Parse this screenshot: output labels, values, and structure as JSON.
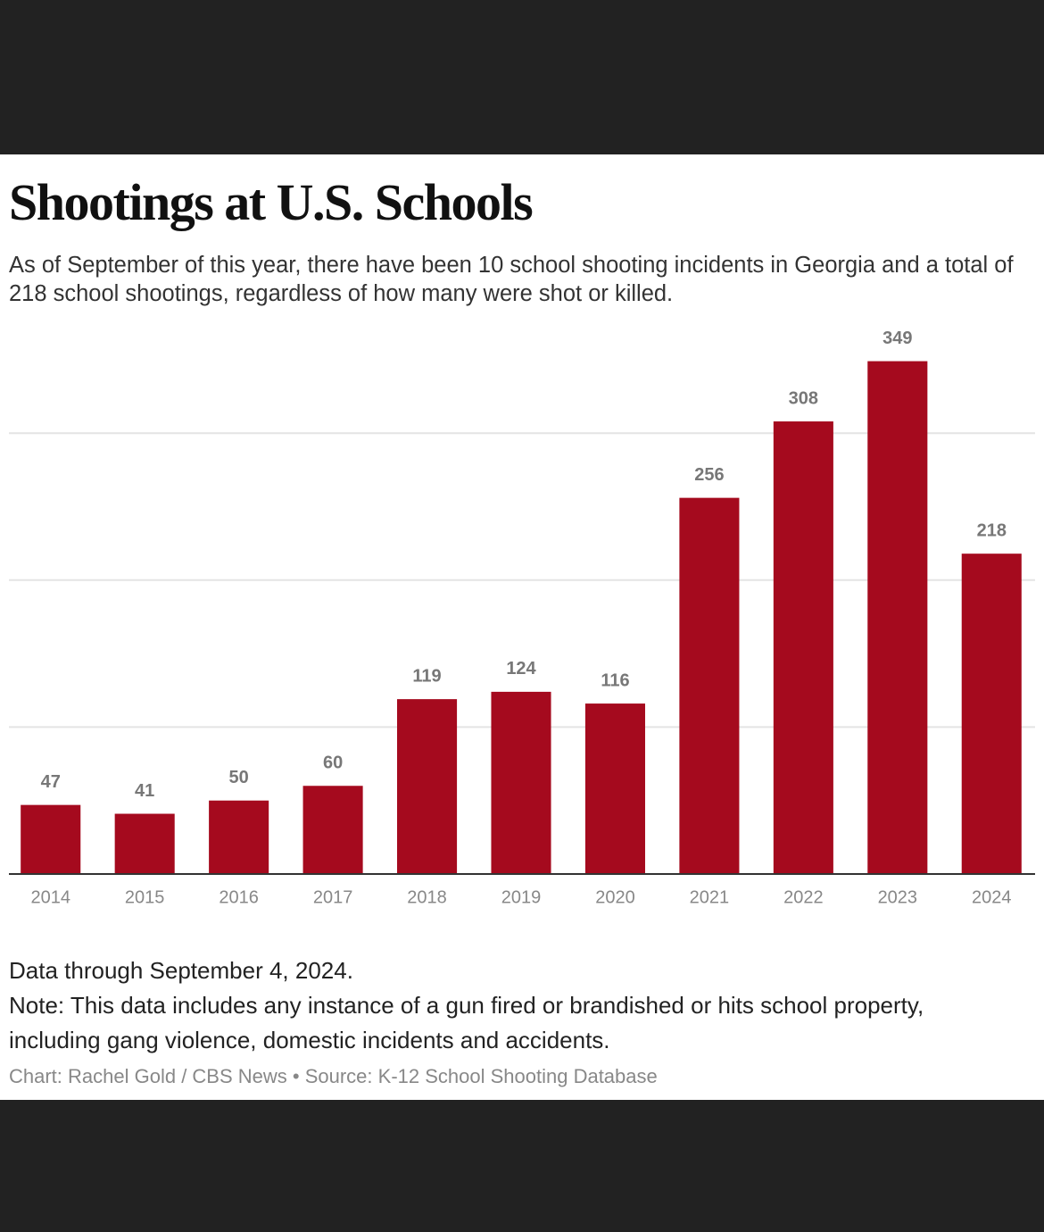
{
  "chart_data": {
    "type": "bar",
    "title": "Shootings at U.S. Schools",
    "subtitle": "As of September of this year, there have been 10 school shooting incidents in Georgia and a total of 218 school shootings, regardless of how many were shot or killed.",
    "categories": [
      "2014",
      "2015",
      "2016",
      "2017",
      "2018",
      "2019",
      "2020",
      "2021",
      "2022",
      "2023",
      "2024"
    ],
    "values": [
      47,
      41,
      50,
      60,
      119,
      124,
      116,
      256,
      308,
      349,
      218
    ],
    "color": "#a50a1e",
    "ylim": [
      0,
      370
    ],
    "yticks": [
      0,
      100,
      200,
      300
    ],
    "grid": true,
    "notes": [
      "Data through September 4, 2024.",
      "Note: This data includes any instance of a gun fired or brandished or hits school property, including gang violence, domestic incidents and accidents."
    ],
    "source": "Chart: Rachel Gold / CBS News • Source: K-12 School Shooting Database"
  }
}
